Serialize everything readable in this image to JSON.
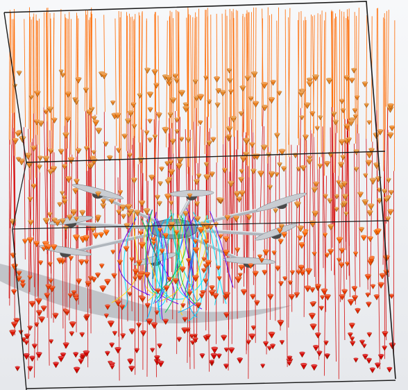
{
  "viewport": {
    "background_color": "#eef0f3",
    "domain_box_edge_color": "#1a1a1a"
  },
  "flow_simulation": {
    "vector_field_colors": {
      "high_velocity": "#d40000",
      "mid_velocity": "#ff6a00",
      "low_velocity": "#e08a2a",
      "streamline_palette": [
        "#00b4ff",
        "#00c853",
        "#ffd600",
        "#6200ea",
        "#00e5ff"
      ]
    },
    "model_colors": {
      "frame": "#b0b6bd",
      "propeller": "#c9cdd2",
      "motor": "#4a4a4a",
      "shadow": "#9ea3a8"
    },
    "arm_count": 8
  }
}
